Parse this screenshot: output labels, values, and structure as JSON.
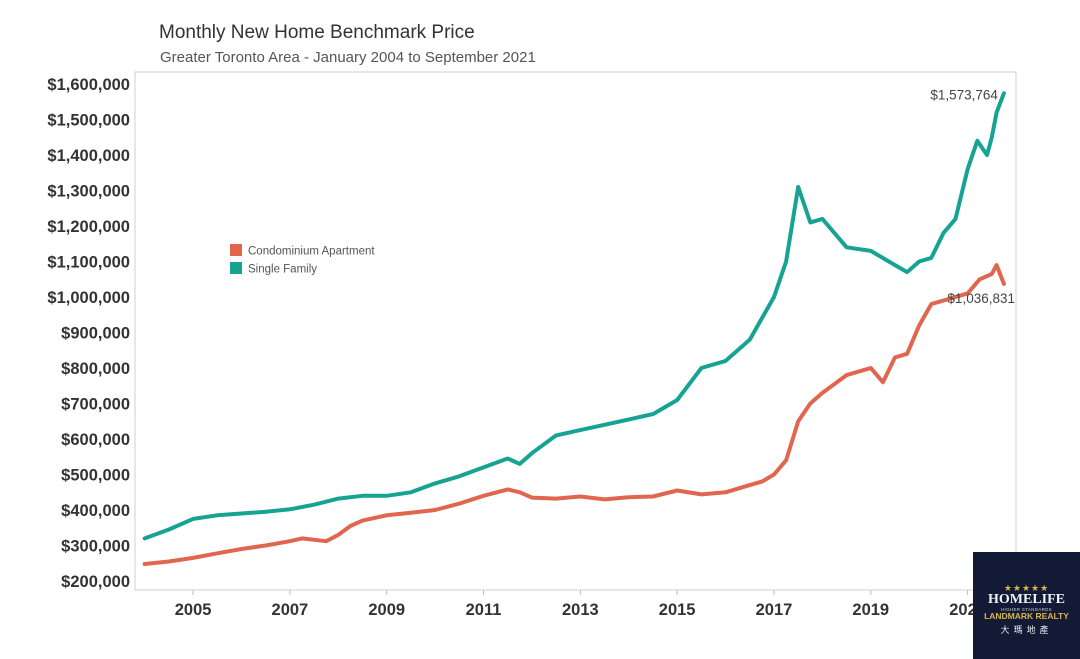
{
  "chart_data": {
    "type": "line",
    "title": "Monthly New Home Benchmark Price",
    "subtitle": "Greater Toronto Area - January 2004 to September 2021",
    "xlim": [
      2003.8,
      2022.0
    ],
    "ylim": [
      200000,
      1620000
    ],
    "yticks": [
      200000,
      300000,
      400000,
      500000,
      600000,
      700000,
      800000,
      900000,
      1000000,
      1100000,
      1200000,
      1300000,
      1400000,
      1500000,
      1600000
    ],
    "ytick_labels": [
      "$200,000",
      "$300,000",
      "$400,000",
      "$500,000",
      "$600,000",
      "$700,000",
      "$800,000",
      "$900,000",
      "$1,000,000",
      "$1,100,000",
      "$1,200,000",
      "$1,300,000",
      "$1,400,000",
      "$1,500,000",
      "$1,600,000"
    ],
    "xticks": [
      2005,
      2007,
      2009,
      2011,
      2013,
      2015,
      2017,
      2019,
      2021
    ],
    "xtick_labels": [
      "2005",
      "2007",
      "2009",
      "2011",
      "2013",
      "2015",
      "2017",
      "2019",
      "2021"
    ],
    "grid": false,
    "legend": "left",
    "series": [
      {
        "name": "Condominium Apartment",
        "color": "#e06650",
        "x": [
          2004.0,
          2004.5,
          2005.0,
          2005.5,
          2006.0,
          2006.5,
          2007.0,
          2007.25,
          2007.75,
          2008.0,
          2008.25,
          2008.5,
          2009.0,
          2009.5,
          2010.0,
          2010.5,
          2011.0,
          2011.5,
          2011.75,
          2012.0,
          2012.5,
          2013.0,
          2013.5,
          2014.0,
          2014.5,
          2015.0,
          2015.5,
          2016.0,
          2016.5,
          2016.75,
          2017.0,
          2017.25,
          2017.5,
          2017.75,
          2018.0,
          2018.5,
          2019.0,
          2019.25,
          2019.5,
          2019.75,
          2020.0,
          2020.25,
          2020.5,
          2021.0,
          2021.25,
          2021.5,
          2021.6,
          2021.75
        ],
        "values": [
          248000,
          255000,
          265000,
          278000,
          290000,
          300000,
          312000,
          320000,
          312000,
          330000,
          355000,
          370000,
          385000,
          392000,
          400000,
          418000,
          440000,
          458000,
          450000,
          435000,
          432000,
          438000,
          430000,
          436000,
          438000,
          455000,
          444000,
          450000,
          470000,
          480000,
          500000,
          540000,
          650000,
          700000,
          730000,
          780000,
          800000,
          760000,
          830000,
          840000,
          920000,
          980000,
          990000,
          1010000,
          1050000,
          1065000,
          1090000,
          1036831
        ]
      },
      {
        "name": "Single Family",
        "color": "#17a394",
        "x": [
          2004.0,
          2004.5,
          2005.0,
          2005.5,
          2006.0,
          2006.5,
          2007.0,
          2007.5,
          2008.0,
          2008.5,
          2009.0,
          2009.5,
          2010.0,
          2010.5,
          2011.0,
          2011.5,
          2011.75,
          2012.0,
          2012.5,
          2013.0,
          2013.5,
          2014.0,
          2014.5,
          2015.0,
          2015.5,
          2016.0,
          2016.5,
          2016.75,
          2017.0,
          2017.25,
          2017.5,
          2017.75,
          2018.0,
          2018.25,
          2018.5,
          2019.0,
          2019.5,
          2019.75,
          2020.0,
          2020.25,
          2020.5,
          2020.75,
          2021.0,
          2021.2,
          2021.4,
          2021.5,
          2021.6,
          2021.75
        ],
        "values": [
          320000,
          345000,
          375000,
          385000,
          390000,
          395000,
          402000,
          415000,
          432000,
          440000,
          440000,
          450000,
          475000,
          495000,
          520000,
          545000,
          530000,
          560000,
          610000,
          625000,
          640000,
          655000,
          670000,
          710000,
          800000,
          820000,
          880000,
          940000,
          1000000,
          1100000,
          1310000,
          1210000,
          1220000,
          1180000,
          1140000,
          1130000,
          1090000,
          1070000,
          1100000,
          1110000,
          1180000,
          1220000,
          1360000,
          1440000,
          1400000,
          1450000,
          1520000,
          1573764
        ]
      }
    ],
    "annotations": [
      {
        "text": "$1,573,764",
        "series": 1
      },
      {
        "text": "$1,036,831",
        "series": 0
      }
    ]
  },
  "logo": {
    "stars": "★★★★★",
    "line1": "HOMELIFE",
    "tagline": "HIGHER STANDARDS",
    "line2": "LANDMARK REALTY",
    "line3": "大瑪地產"
  }
}
